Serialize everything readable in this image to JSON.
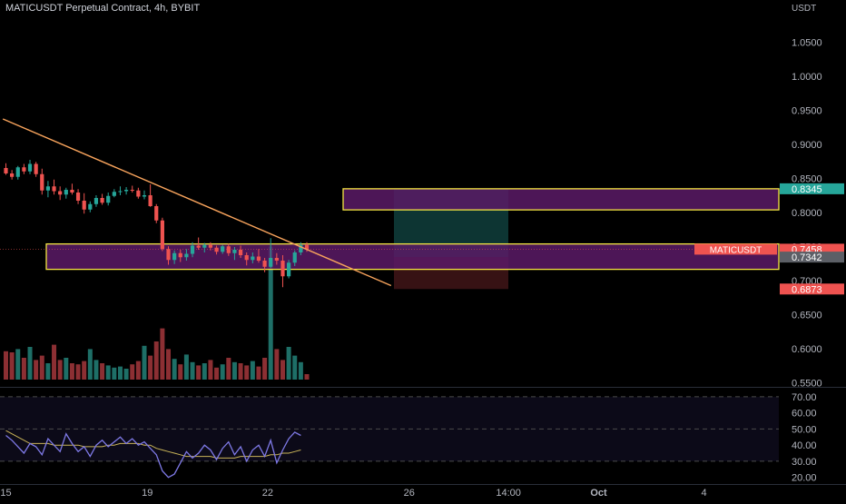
{
  "header": {
    "title": "MATICUSDT Perpetual Contract, 4h, BYBIT"
  },
  "colors": {
    "background": "#000000",
    "up": "#26a69a",
    "down": "#ef5350",
    "zone_fill": "#5b1a66",
    "zone_border": "#f5e642",
    "trendline": "#f7a35c",
    "rsi_line": "#7e79e6",
    "rsi_ma": "#c9b458",
    "target_fill": "#0e3b39",
    "stop_fill": "#3d1416",
    "axis_text": "#b2b5be"
  },
  "chart_data": [
    {
      "type": "candlestick",
      "currency": "USDT",
      "y_ticks": [
        "1.0500",
        "1.0000",
        "0.9500",
        "0.9000",
        "0.8500",
        "0.8000",
        "0.7500",
        "0.7000",
        "0.6500",
        "0.6000",
        "0.5500"
      ],
      "ylim": [
        0.545,
        1.085
      ],
      "x_ticks": [
        "15",
        "19",
        "22",
        "26",
        "14:00",
        "Oct",
        "4"
      ],
      "x_tick_index": [
        0,
        23.5,
        43.5,
        67,
        83.5,
        98.5,
        116
      ],
      "candles": [
        [
          0.865,
          0.872,
          0.855,
          0.857
        ],
        [
          0.857,
          0.862,
          0.848,
          0.852
        ],
        [
          0.852,
          0.868,
          0.848,
          0.866
        ],
        [
          0.866,
          0.871,
          0.856,
          0.86
        ],
        [
          0.86,
          0.877,
          0.856,
          0.871
        ],
        [
          0.871,
          0.874,
          0.852,
          0.856
        ],
        [
          0.856,
          0.864,
          0.826,
          0.832
        ],
        [
          0.832,
          0.846,
          0.822,
          0.838
        ],
        [
          0.838,
          0.848,
          0.826,
          0.831
        ],
        [
          0.831,
          0.838,
          0.818,
          0.826
        ],
        [
          0.826,
          0.836,
          0.82,
          0.833
        ],
        [
          0.833,
          0.842,
          0.826,
          0.829
        ],
        [
          0.829,
          0.834,
          0.812,
          0.817
        ],
        [
          0.817,
          0.828,
          0.798,
          0.804
        ],
        [
          0.804,
          0.816,
          0.8,
          0.812
        ],
        [
          0.812,
          0.825,
          0.808,
          0.821
        ],
        [
          0.821,
          0.827,
          0.811,
          0.814
        ],
        [
          0.814,
          0.829,
          0.81,
          0.824
        ],
        [
          0.824,
          0.834,
          0.822,
          0.83
        ],
        [
          0.83,
          0.838,
          0.825,
          0.831
        ],
        [
          0.831,
          0.837,
          0.826,
          0.833
        ],
        [
          0.833,
          0.839,
          0.829,
          0.832
        ],
        [
          0.832,
          0.836,
          0.82,
          0.823
        ],
        [
          0.823,
          0.832,
          0.819,
          0.825
        ],
        [
          0.825,
          0.841,
          0.808,
          0.809
        ],
        [
          0.809,
          0.812,
          0.784,
          0.788
        ],
        [
          0.788,
          0.792,
          0.743,
          0.746
        ],
        [
          0.746,
          0.75,
          0.723,
          0.73
        ],
        [
          0.73,
          0.744,
          0.724,
          0.74
        ],
        [
          0.74,
          0.745,
          0.727,
          0.734
        ],
        [
          0.734,
          0.746,
          0.729,
          0.739
        ],
        [
          0.739,
          0.756,
          0.734,
          0.751
        ],
        [
          0.751,
          0.763,
          0.745,
          0.748
        ],
        [
          0.748,
          0.755,
          0.741,
          0.752
        ],
        [
          0.752,
          0.756,
          0.744,
          0.748
        ],
        [
          0.748,
          0.751,
          0.738,
          0.742
        ],
        [
          0.742,
          0.752,
          0.739,
          0.75
        ],
        [
          0.75,
          0.754,
          0.736,
          0.74
        ],
        [
          0.74,
          0.749,
          0.73,
          0.745
        ],
        [
          0.745,
          0.751,
          0.733,
          0.737
        ],
        [
          0.737,
          0.741,
          0.722,
          0.73
        ],
        [
          0.73,
          0.741,
          0.725,
          0.735
        ],
        [
          0.735,
          0.746,
          0.726,
          0.729
        ],
        [
          0.729,
          0.733,
          0.712,
          0.72
        ],
        [
          0.72,
          0.762,
          0.718,
          0.733
        ],
        [
          0.733,
          0.74,
          0.723,
          0.729
        ],
        [
          0.729,
          0.737,
          0.69,
          0.706
        ],
        [
          0.706,
          0.73,
          0.703,
          0.726
        ],
        [
          0.726,
          0.744,
          0.721,
          0.741
        ],
        [
          0.741,
          0.756,
          0.737,
          0.752
        ],
        [
          0.752,
          0.756,
          0.742,
          0.746
        ]
      ],
      "volumes": [
        26,
        25,
        28,
        20,
        30,
        18,
        22,
        15,
        32,
        18,
        20,
        15,
        14,
        17,
        28,
        18,
        15,
        13,
        11,
        12,
        10,
        14,
        17,
        31,
        22,
        35,
        47,
        28,
        19,
        14,
        23,
        16,
        13,
        15,
        18,
        11,
        14,
        20,
        16,
        15,
        13,
        17,
        12,
        20,
        122,
        28,
        18,
        30,
        22,
        16,
        5
      ],
      "zones": [
        {
          "top": 0.8345,
          "bottom": 0.8035
        },
        {
          "top": 0.7535,
          "bottom": 0.7162
        }
      ],
      "position": {
        "entry": 0.7342,
        "target": 0.8345,
        "stop": 0.6873
      },
      "trendline": {
        "start": [
          -0.5,
          0.937
        ],
        "end": [
          64,
          0.6923
        ]
      },
      "price_labels": [
        {
          "text": "0.8345",
          "value": 0.8345,
          "color": "#26a69a"
        },
        {
          "text": "0.7458",
          "value": 0.7458,
          "color": "#ef5350",
          "tag": "MATICUSDT"
        },
        {
          "text": "0.7342",
          "value": 0.7342,
          "color": "#5c5f66"
        },
        {
          "text": "0.6873",
          "value": 0.6873,
          "color": "#ef5350"
        }
      ]
    },
    {
      "type": "line",
      "indicator": "RSI",
      "y_ticks": [
        "70.00",
        "60.00",
        "50.00",
        "40.00",
        "30.00",
        "20.00"
      ],
      "ylim": [
        17,
        75
      ],
      "levels": [
        70,
        50,
        30
      ],
      "series": [
        {
          "values": [
            46,
            43,
            39,
            35,
            41,
            39,
            34,
            44,
            40,
            36,
            47,
            41,
            36,
            39,
            33,
            40,
            43,
            39,
            42,
            45,
            41,
            44,
            40,
            42,
            38,
            34,
            24,
            20,
            22,
            29,
            36,
            32,
            35,
            40,
            37,
            31,
            38,
            42,
            34,
            39,
            30,
            37,
            40,
            33,
            43,
            29,
            37,
            44,
            48,
            46
          ]
        },
        {
          "values": [
            49,
            47,
            45,
            43,
            41,
            41,
            41,
            41,
            40,
            40,
            40,
            40,
            40,
            39,
            39,
            39,
            39,
            40,
            40,
            41,
            41,
            41,
            41,
            40,
            40,
            38,
            37,
            36,
            35,
            34,
            33,
            33,
            33,
            33,
            33,
            32,
            32,
            32,
            32,
            33,
            33,
            33,
            33,
            33,
            34,
            34,
            35,
            35,
            36,
            37
          ]
        }
      ]
    }
  ]
}
